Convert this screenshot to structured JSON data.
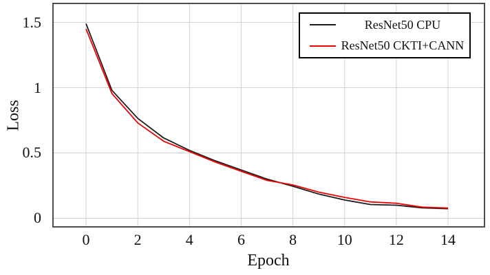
{
  "chart_data": {
    "type": "line",
    "title": "",
    "xlabel": "Epoch",
    "ylabel": "Loss",
    "grid": true,
    "legend_position": "top-right",
    "x": [
      0,
      1,
      2,
      3,
      4,
      5,
      6,
      7,
      8,
      9,
      10,
      11,
      12,
      13,
      14
    ],
    "x_ticks": [
      0,
      2,
      4,
      6,
      8,
      10,
      12,
      14
    ],
    "x_tick_labels": [
      "0",
      "2",
      "4",
      "6",
      "8",
      "10",
      "12",
      "14"
    ],
    "y_ticks": [
      0,
      0.5,
      1,
      1.5
    ],
    "y_tick_labels": [
      "0",
      "0.5",
      "1",
      "1.5"
    ],
    "xlim": [
      -1.278,
      15.41
    ],
    "ylim": [
      -0.066,
      1.645
    ],
    "series": [
      {
        "name": "ResNet50 CPU",
        "color": "#1a1a1a",
        "values": [
          1.49,
          0.98,
          0.765,
          0.615,
          0.52,
          0.44,
          0.37,
          0.3,
          0.245,
          0.185,
          0.14,
          0.105,
          0.1,
          0.08,
          0.073
        ]
      },
      {
        "name": "ResNet50 CKTI+CANN",
        "color": "#ee0000",
        "values": [
          1.45,
          0.955,
          0.73,
          0.59,
          0.51,
          0.43,
          0.36,
          0.29,
          0.255,
          0.2,
          0.16,
          0.125,
          0.115,
          0.085,
          0.078
        ]
      }
    ],
    "colors": {
      "background": "#ffffff",
      "grid": "#d2d2d2",
      "frame": "#4d4d4d",
      "text": "#111111",
      "legend_border": "#000000"
    }
  }
}
